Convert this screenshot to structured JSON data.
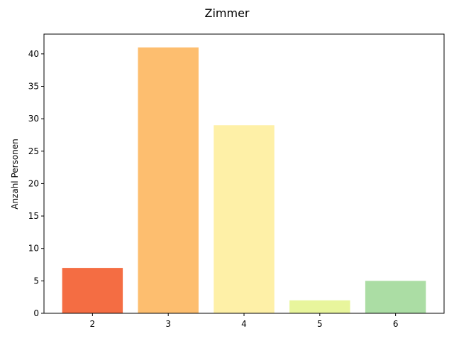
{
  "chart_data": {
    "type": "bar",
    "title": "Zimmer",
    "xlabel": "",
    "ylabel": "Anzahl Personen",
    "categories": [
      "2",
      "3",
      "4",
      "5",
      "6"
    ],
    "values": [
      7,
      41,
      29,
      2,
      5
    ],
    "colors": [
      "#f46d43",
      "#fdbe6f",
      "#fef0a7",
      "#e8f59c",
      "#abdda4"
    ],
    "ylim": [
      0,
      43.05
    ],
    "yticks": [
      0,
      5,
      10,
      15,
      20,
      25,
      30,
      35,
      40
    ],
    "grid": false
  }
}
